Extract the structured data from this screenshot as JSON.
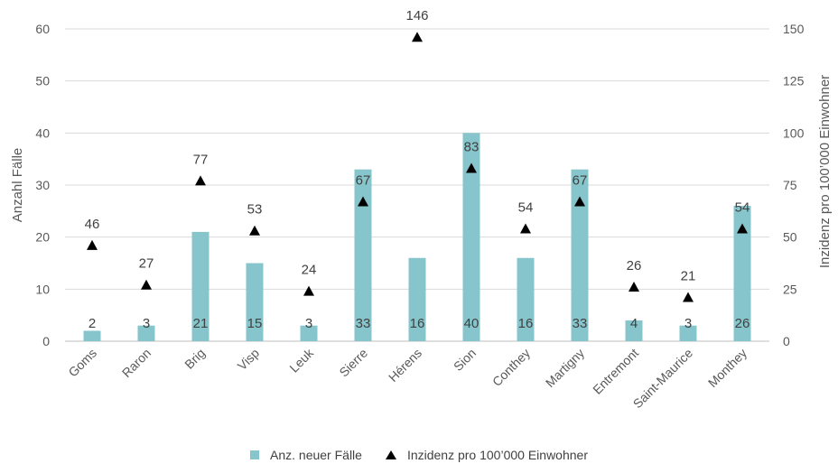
{
  "chart_data": {
    "type": "bar",
    "categories": [
      "Goms",
      "Raron",
      "Brig",
      "Visp",
      "Leuk",
      "Sierre",
      "Hérens",
      "Sion",
      "Conthey",
      "Martigny",
      "Entremont",
      "Saint-Maurice",
      "Monthey"
    ],
    "series": [
      {
        "name": "Anz. neuer Fälle",
        "type": "bar",
        "axis": "left",
        "values": [
          2,
          3,
          21,
          15,
          3,
          33,
          16,
          40,
          16,
          33,
          4,
          3,
          26
        ],
        "color": "#86c5cb"
      },
      {
        "name": "Inzidenz pro 100’000 Einwohner",
        "type": "scatter",
        "axis": "right",
        "marker": "triangle",
        "values": [
          46,
          27,
          77,
          53,
          24,
          67,
          146,
          83,
          54,
          67,
          26,
          21,
          54
        ],
        "color": "#000000"
      }
    ],
    "ylabel": "Anzahl Fälle",
    "ylim": [
      0,
      60
    ],
    "yticks": [
      0,
      10,
      20,
      30,
      40,
      50,
      60
    ],
    "y2label": "Inzidenz pro 100’000 Einwohner",
    "y2lim": [
      0,
      150
    ],
    "y2ticks": [
      0,
      25,
      50,
      75,
      100,
      125,
      150
    ],
    "grid": true,
    "legend_position": "bottom"
  }
}
